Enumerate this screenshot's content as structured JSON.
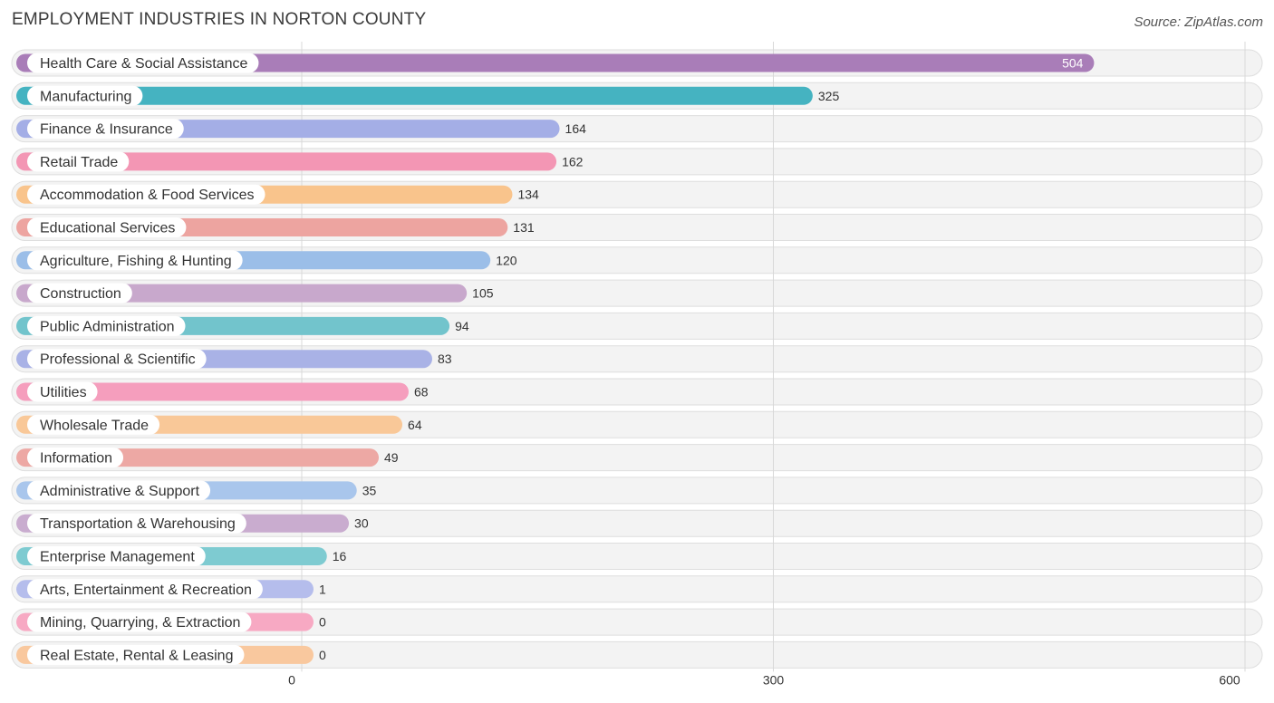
{
  "chart_data": {
    "type": "bar",
    "orientation": "horizontal",
    "title": "EMPLOYMENT INDUSTRIES IN NORTON COUNTY",
    "source": "Source: ZipAtlas.com",
    "xlim": [
      0,
      600
    ],
    "xticks": [
      0,
      300,
      600
    ],
    "grid": true,
    "categories": [
      "Health Care & Social Assistance",
      "Manufacturing",
      "Finance & Insurance",
      "Retail Trade",
      "Accommodation & Food Services",
      "Educational Services",
      "Agriculture, Fishing & Hunting",
      "Construction",
      "Public Administration",
      "Professional & Scientific",
      "Utilities",
      "Wholesale Trade",
      "Information",
      "Administrative & Support",
      "Transportation & Warehousing",
      "Enterprise Management",
      "Arts, Entertainment & Recreation",
      "Mining, Quarrying, & Extraction",
      "Real Estate, Rental & Leasing"
    ],
    "values": [
      504,
      325,
      164,
      162,
      134,
      131,
      120,
      105,
      94,
      83,
      68,
      64,
      49,
      35,
      30,
      16,
      1,
      0,
      0
    ],
    "colors": [
      "#a97db8",
      "#45b3c1",
      "#a4aee6",
      "#f396b4",
      "#f9c48c",
      "#eda4a0",
      "#9bbee8",
      "#c8a8cc",
      "#72c4cc",
      "#a9b2e6",
      "#f59ebd",
      "#f9c898",
      "#eda8a4",
      "#a9c6ec",
      "#c9accf",
      "#7ecbd1",
      "#b5bdec",
      "#f7a9c3",
      "#f9c89e"
    ]
  }
}
